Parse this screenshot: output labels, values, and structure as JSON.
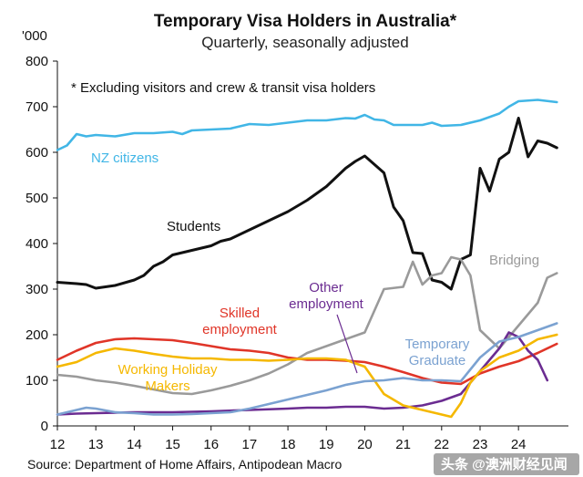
{
  "chart_data": {
    "type": "line",
    "title": "Temporary Visa Holders in Australia*",
    "subtitle": "Quarterly, seasonally adjusted",
    "unit_label": "'000",
    "footnote": "* Excluding visitors and crew & transit visa holders",
    "source": "Source: Department of Home Affairs, Antipodean Macro",
    "watermark": "头条 @澳洲财经见闻",
    "ylim": [
      0,
      800
    ],
    "xlim": [
      2012,
      2025.3
    ],
    "yticks": [
      "0",
      "100",
      "200",
      "300",
      "400",
      "500",
      "600",
      "700",
      "800"
    ],
    "xticks": [
      "12",
      "13",
      "14",
      "15",
      "16",
      "17",
      "18",
      "19",
      "20",
      "21",
      "22",
      "23",
      "24"
    ],
    "grid": false,
    "series": [
      {
        "name": "NZ citizens",
        "label_lines": [
          "NZ citizens"
        ],
        "color": "#41b6e6",
        "points": [
          [
            2012.0,
            605
          ],
          [
            2012.25,
            615
          ],
          [
            2012.5,
            640
          ],
          [
            2012.75,
            635
          ],
          [
            2013.0,
            638
          ],
          [
            2013.5,
            635
          ],
          [
            2014.0,
            642
          ],
          [
            2014.5,
            642
          ],
          [
            2015.0,
            645
          ],
          [
            2015.25,
            640
          ],
          [
            2015.5,
            648
          ],
          [
            2016.0,
            650
          ],
          [
            2016.5,
            652
          ],
          [
            2017.0,
            662
          ],
          [
            2017.5,
            660
          ],
          [
            2018.0,
            665
          ],
          [
            2018.5,
            670
          ],
          [
            2019.0,
            670
          ],
          [
            2019.5,
            675
          ],
          [
            2019.75,
            674
          ],
          [
            2020.0,
            682
          ],
          [
            2020.25,
            672
          ],
          [
            2020.5,
            670
          ],
          [
            2020.75,
            660
          ],
          [
            2021.0,
            660
          ],
          [
            2021.5,
            660
          ],
          [
            2021.75,
            665
          ],
          [
            2022.0,
            658
          ],
          [
            2022.5,
            660
          ],
          [
            2023.0,
            670
          ],
          [
            2023.5,
            685
          ],
          [
            2023.75,
            700
          ],
          [
            2024.0,
            712
          ],
          [
            2024.5,
            715
          ],
          [
            2025.0,
            710
          ]
        ]
      },
      {
        "name": "Students",
        "label_lines": [
          "Students"
        ],
        "color": "#111111",
        "points": [
          [
            2012.0,
            315
          ],
          [
            2012.5,
            312
          ],
          [
            2012.75,
            310
          ],
          [
            2013.0,
            302
          ],
          [
            2013.5,
            308
          ],
          [
            2014.0,
            320
          ],
          [
            2014.25,
            330
          ],
          [
            2014.5,
            350
          ],
          [
            2014.75,
            360
          ],
          [
            2015.0,
            375
          ],
          [
            2015.5,
            385
          ],
          [
            2016.0,
            395
          ],
          [
            2016.25,
            405
          ],
          [
            2016.5,
            410
          ],
          [
            2017.0,
            430
          ],
          [
            2017.5,
            450
          ],
          [
            2017.75,
            460
          ],
          [
            2018.0,
            470
          ],
          [
            2018.5,
            495
          ],
          [
            2019.0,
            525
          ],
          [
            2019.5,
            565
          ],
          [
            2019.75,
            580
          ],
          [
            2020.0,
            592
          ],
          [
            2020.5,
            555
          ],
          [
            2020.75,
            480
          ],
          [
            2021.0,
            450
          ],
          [
            2021.25,
            380
          ],
          [
            2021.5,
            378
          ],
          [
            2021.75,
            320
          ],
          [
            2022.0,
            315
          ],
          [
            2022.25,
            300
          ],
          [
            2022.5,
            365
          ],
          [
            2022.75,
            375
          ],
          [
            2023.0,
            565
          ],
          [
            2023.25,
            515
          ],
          [
            2023.5,
            585
          ],
          [
            2023.75,
            600
          ],
          [
            2024.0,
            675
          ],
          [
            2024.25,
            590
          ],
          [
            2024.5,
            625
          ],
          [
            2024.75,
            620
          ],
          [
            2025.0,
            610
          ]
        ]
      },
      {
        "name": "Bridging",
        "label_lines": [
          "Bridging"
        ],
        "color": "#9a9a9a",
        "points": [
          [
            2012.0,
            112
          ],
          [
            2012.5,
            108
          ],
          [
            2013.0,
            100
          ],
          [
            2013.5,
            95
          ],
          [
            2014.0,
            88
          ],
          [
            2014.5,
            80
          ],
          [
            2015.0,
            72
          ],
          [
            2015.5,
            70
          ],
          [
            2016.0,
            78
          ],
          [
            2016.5,
            88
          ],
          [
            2017.0,
            100
          ],
          [
            2017.5,
            115
          ],
          [
            2018.0,
            135
          ],
          [
            2018.5,
            160
          ],
          [
            2019.0,
            175
          ],
          [
            2019.5,
            190
          ],
          [
            2020.0,
            205
          ],
          [
            2020.5,
            300
          ],
          [
            2021.0,
            305
          ],
          [
            2021.25,
            360
          ],
          [
            2021.5,
            310
          ],
          [
            2021.75,
            330
          ],
          [
            2022.0,
            335
          ],
          [
            2022.25,
            370
          ],
          [
            2022.5,
            365
          ],
          [
            2022.75,
            330
          ],
          [
            2023.0,
            210
          ],
          [
            2023.5,
            170
          ],
          [
            2024.0,
            220
          ],
          [
            2024.5,
            270
          ],
          [
            2024.75,
            325
          ],
          [
            2025.0,
            335
          ]
        ]
      },
      {
        "name": "Skilled employment",
        "label_lines": [
          "Skilled",
          "employment"
        ],
        "color": "#e03528",
        "points": [
          [
            2012.0,
            145
          ],
          [
            2012.5,
            165
          ],
          [
            2013.0,
            182
          ],
          [
            2013.5,
            190
          ],
          [
            2014.0,
            192
          ],
          [
            2014.5,
            190
          ],
          [
            2015.0,
            188
          ],
          [
            2015.5,
            182
          ],
          [
            2016.0,
            175
          ],
          [
            2016.5,
            168
          ],
          [
            2017.0,
            165
          ],
          [
            2017.5,
            160
          ],
          [
            2018.0,
            150
          ],
          [
            2018.5,
            145
          ],
          [
            2019.0,
            145
          ],
          [
            2019.5,
            143
          ],
          [
            2020.0,
            140
          ],
          [
            2020.5,
            130
          ],
          [
            2021.0,
            118
          ],
          [
            2021.5,
            105
          ],
          [
            2022.0,
            95
          ],
          [
            2022.5,
            92
          ],
          [
            2023.0,
            115
          ],
          [
            2023.5,
            130
          ],
          [
            2024.0,
            142
          ],
          [
            2024.5,
            160
          ],
          [
            2025.0,
            180
          ]
        ]
      },
      {
        "name": "Other employment",
        "label_lines": [
          "Other",
          "employment"
        ],
        "color": "#6b2c91",
        "points": [
          [
            2012.0,
            25
          ],
          [
            2012.5,
            27
          ],
          [
            2013.0,
            28
          ],
          [
            2014.0,
            30
          ],
          [
            2015.0,
            30
          ],
          [
            2016.0,
            32
          ],
          [
            2017.0,
            35
          ],
          [
            2018.0,
            38
          ],
          [
            2018.5,
            40
          ],
          [
            2019.0,
            40
          ],
          [
            2019.5,
            42
          ],
          [
            2020.0,
            42
          ],
          [
            2020.5,
            38
          ],
          [
            2021.0,
            40
          ],
          [
            2021.5,
            45
          ],
          [
            2022.0,
            55
          ],
          [
            2022.5,
            70
          ],
          [
            2023.0,
            120
          ],
          [
            2023.5,
            170
          ],
          [
            2023.75,
            205
          ],
          [
            2024.0,
            195
          ],
          [
            2024.25,
            165
          ],
          [
            2024.5,
            145
          ],
          [
            2024.75,
            100
          ]
        ]
      },
      {
        "name": "Working Holiday Makers",
        "label_lines": [
          "Working Holiday",
          "Makers"
        ],
        "color": "#f5b800",
        "points": [
          [
            2012.0,
            130
          ],
          [
            2012.5,
            140
          ],
          [
            2013.0,
            160
          ],
          [
            2013.5,
            170
          ],
          [
            2014.0,
            165
          ],
          [
            2014.5,
            158
          ],
          [
            2015.0,
            152
          ],
          [
            2015.5,
            148
          ],
          [
            2016.0,
            148
          ],
          [
            2016.5,
            145
          ],
          [
            2017.0,
            145
          ],
          [
            2017.5,
            143
          ],
          [
            2018.0,
            145
          ],
          [
            2018.5,
            148
          ],
          [
            2019.0,
            148
          ],
          [
            2019.5,
            145
          ],
          [
            2020.0,
            130
          ],
          [
            2020.25,
            100
          ],
          [
            2020.5,
            70
          ],
          [
            2021.0,
            45
          ],
          [
            2021.5,
            35
          ],
          [
            2022.0,
            25
          ],
          [
            2022.25,
            20
          ],
          [
            2022.5,
            50
          ],
          [
            2022.75,
            95
          ],
          [
            2023.0,
            120
          ],
          [
            2023.5,
            150
          ],
          [
            2024.0,
            165
          ],
          [
            2024.5,
            190
          ],
          [
            2025.0,
            200
          ]
        ]
      },
      {
        "name": "Temporary Graduate",
        "label_lines": [
          "Temporary",
          "Graduate"
        ],
        "color": "#7ba2d1",
        "points": [
          [
            2012.0,
            25
          ],
          [
            2012.5,
            35
          ],
          [
            2012.75,
            40
          ],
          [
            2013.0,
            38
          ],
          [
            2013.5,
            30
          ],
          [
            2014.0,
            28
          ],
          [
            2014.5,
            25
          ],
          [
            2015.0,
            25
          ],
          [
            2015.5,
            26
          ],
          [
            2016.0,
            28
          ],
          [
            2016.5,
            30
          ],
          [
            2017.0,
            38
          ],
          [
            2017.5,
            48
          ],
          [
            2018.0,
            58
          ],
          [
            2018.5,
            68
          ],
          [
            2019.0,
            78
          ],
          [
            2019.5,
            90
          ],
          [
            2020.0,
            98
          ],
          [
            2020.5,
            100
          ],
          [
            2021.0,
            105
          ],
          [
            2021.5,
            100
          ],
          [
            2022.0,
            100
          ],
          [
            2022.5,
            98
          ],
          [
            2023.0,
            150
          ],
          [
            2023.5,
            185
          ],
          [
            2024.0,
            195
          ],
          [
            2024.5,
            210
          ],
          [
            2025.0,
            225
          ]
        ]
      }
    ]
  }
}
